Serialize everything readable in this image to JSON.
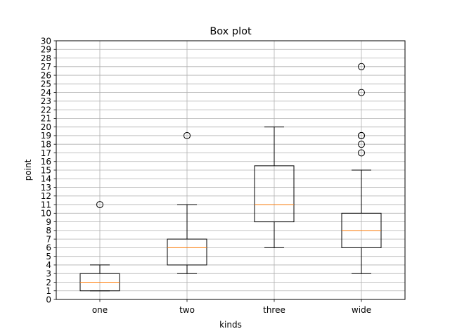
{
  "chart_data": {
    "type": "box",
    "title": "Box plot",
    "xlabel": "kinds",
    "ylabel": "point",
    "ylim": [
      0,
      30
    ],
    "yticks": [
      0,
      1,
      2,
      3,
      4,
      5,
      6,
      7,
      8,
      9,
      10,
      11,
      12,
      13,
      14,
      15,
      16,
      17,
      18,
      19,
      20,
      21,
      22,
      23,
      24,
      25,
      26,
      27,
      28,
      29,
      30
    ],
    "grid": true,
    "categories": [
      "one",
      "two",
      "three",
      "wide"
    ],
    "boxes": [
      {
        "label": "one",
        "whisker_low": 1,
        "q1": 1,
        "median": 2,
        "q3": 3,
        "whisker_high": 4,
        "outliers": [
          11
        ]
      },
      {
        "label": "two",
        "whisker_low": 3,
        "q1": 4,
        "median": 6,
        "q3": 7,
        "whisker_high": 11,
        "outliers": [
          19
        ]
      },
      {
        "label": "three",
        "whisker_low": 6,
        "q1": 9,
        "median": 11,
        "q3": 15.5,
        "whisker_high": 20,
        "outliers": []
      },
      {
        "label": "wide",
        "whisker_low": 3,
        "q1": 6,
        "median": 8,
        "q3": 10,
        "whisker_high": 15,
        "outliers": [
          17,
          18,
          19,
          19,
          24,
          27
        ]
      }
    ],
    "colors": {
      "box": "#000000",
      "median": "#ff7f0e",
      "grid": "#b0b0b0"
    }
  }
}
